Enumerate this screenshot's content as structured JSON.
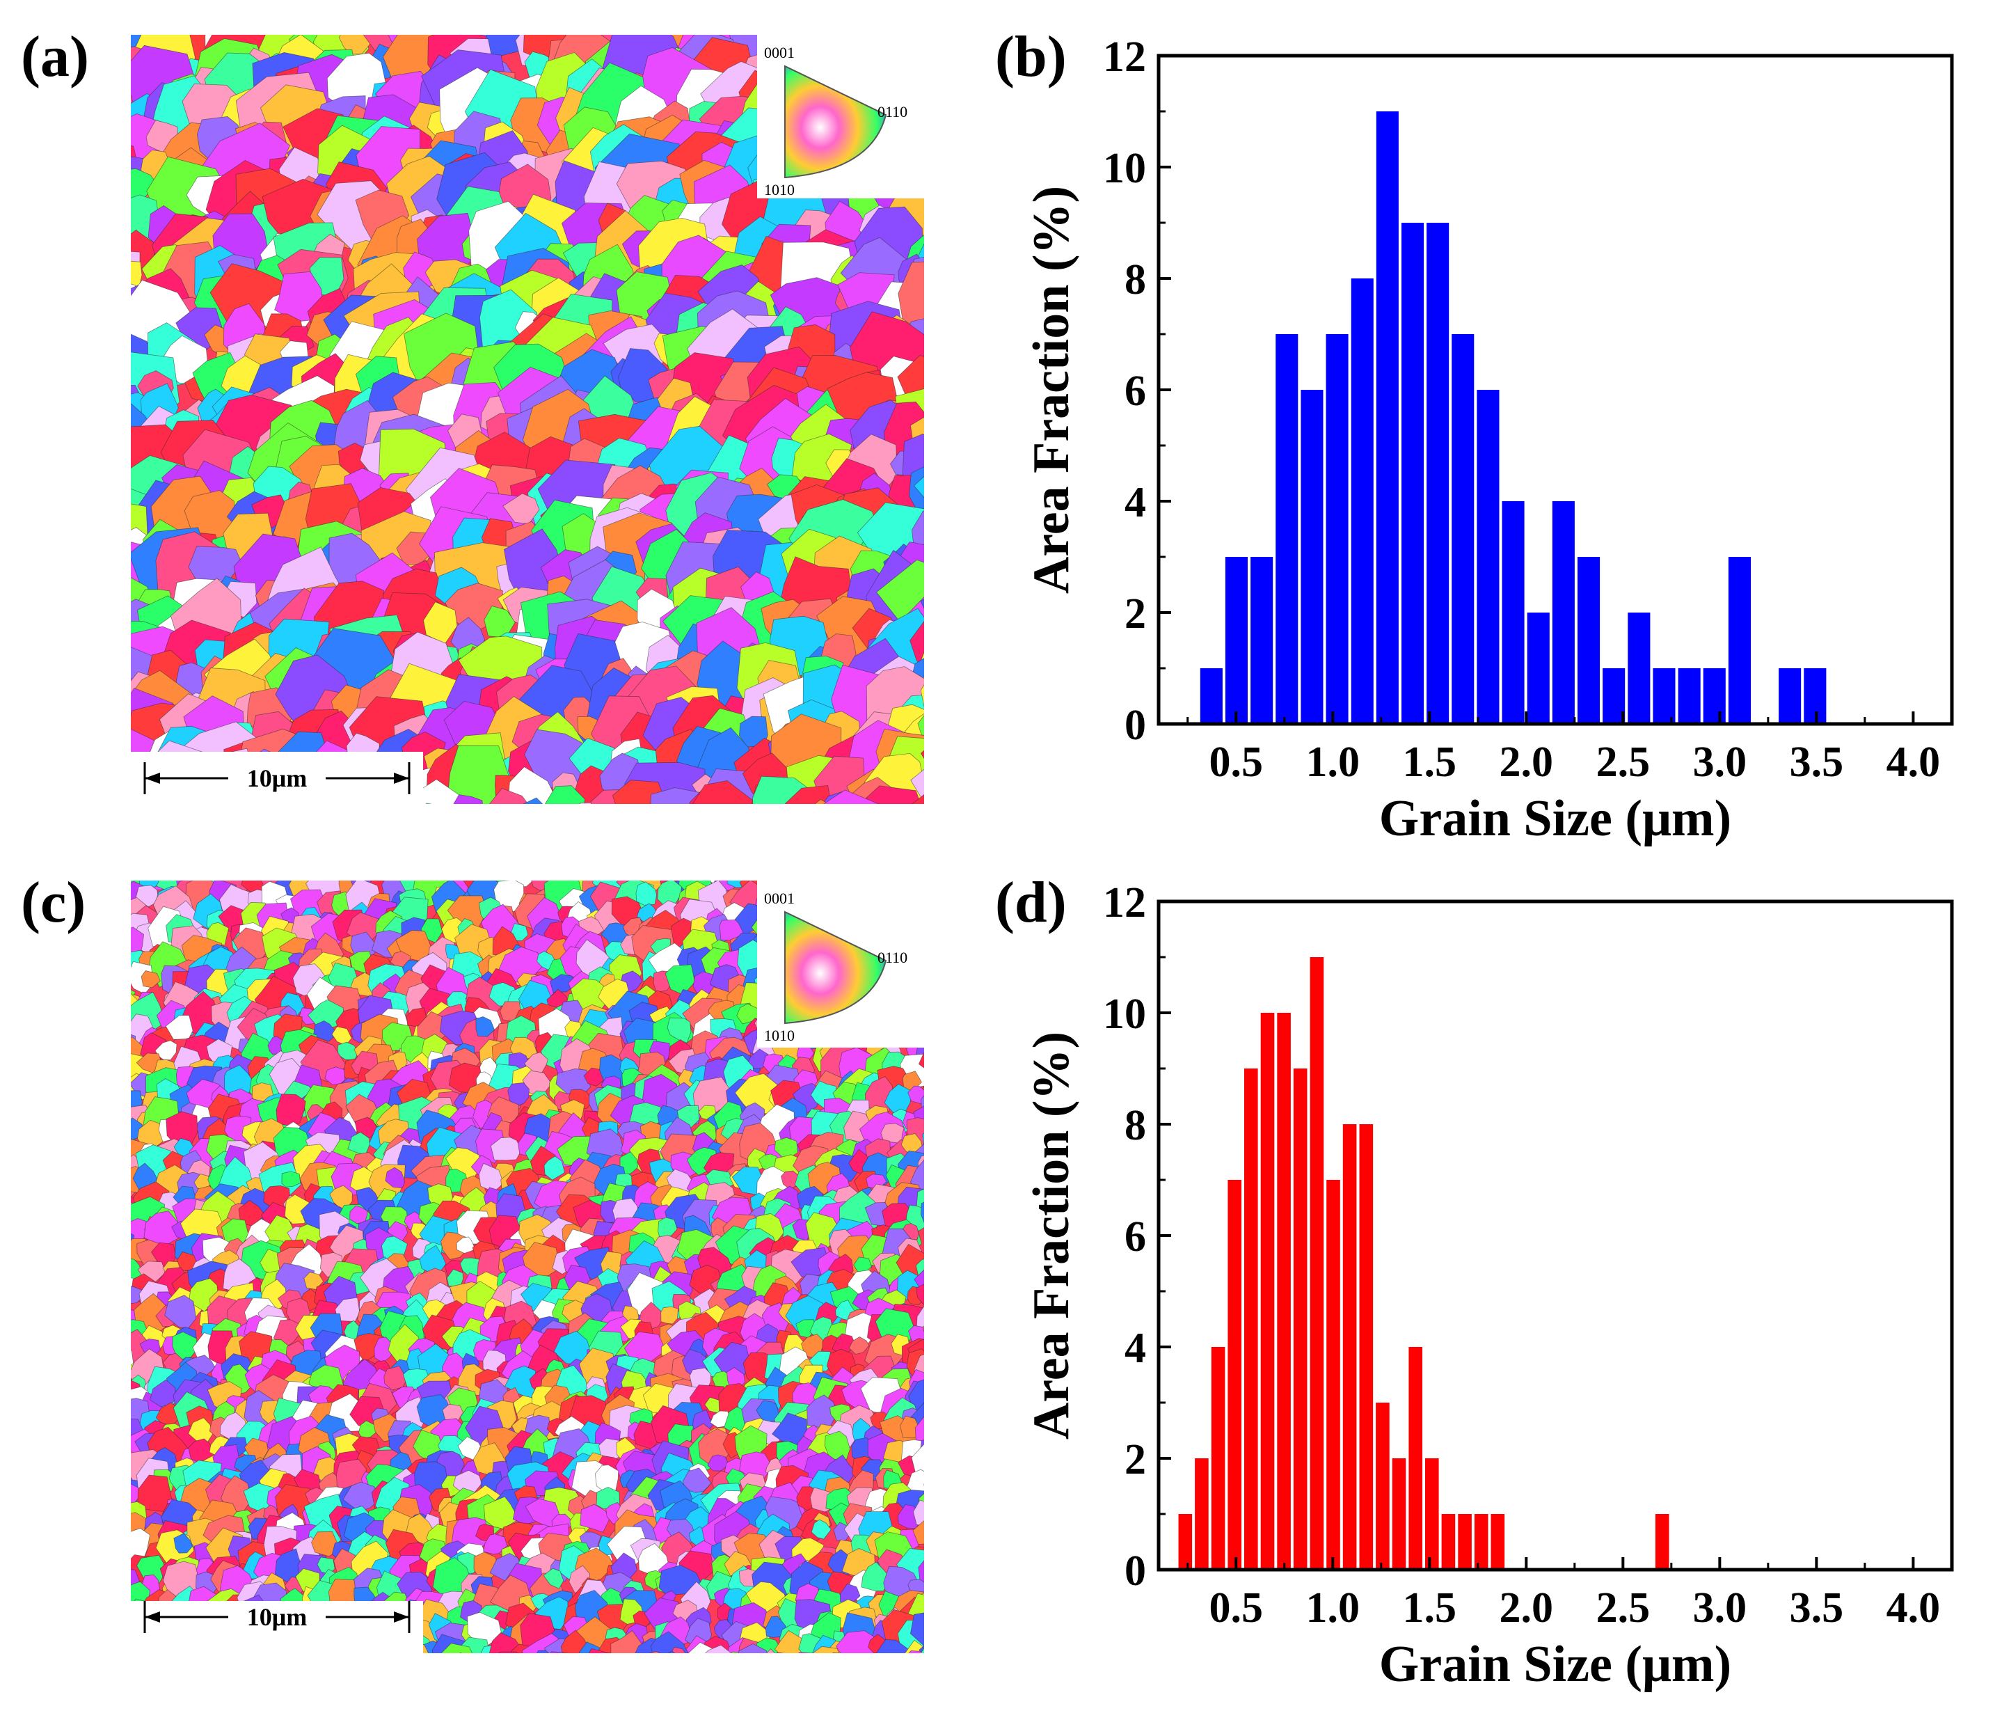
{
  "panels": {
    "a": "(a)",
    "b": "(b)",
    "c": "(c)",
    "d": "(d)"
  },
  "ebsd": [
    {
      "id": "a",
      "scale_bar_label": "10μm",
      "ipf_labels": {
        "top": "0001",
        "right": "0110",
        "bottom": "1010"
      },
      "seed": 11,
      "grain_scale": "coarse"
    },
    {
      "id": "c",
      "scale_bar_label": "10μm",
      "ipf_labels": {
        "top": "0001",
        "right": "0110",
        "bottom": "1010"
      },
      "seed": 29,
      "grain_scale": "fine"
    }
  ],
  "colors": {
    "blue_bars": "#0000ff",
    "red_bars": "#ff0000",
    "grain_palette": [
      "#ff2a4a",
      "#ff3b3b",
      "#ff4d8a",
      "#f04aff",
      "#c43bff",
      "#8b4bff",
      "#4b5cff",
      "#2f7fff",
      "#1fd1ff",
      "#35ffd9",
      "#2aff6a",
      "#6bff3b",
      "#b8ff2a",
      "#fff23a",
      "#ffc13b",
      "#ff8a3b",
      "#ff6a6a",
      "#ff9ac0",
      "#f2c0ff",
      "#ffffff",
      "#9a6bff",
      "#3bff9e",
      "#e84aff",
      "#ff1f6e"
    ]
  },
  "chart_data": [
    {
      "id": "b",
      "type": "bar",
      "title": "",
      "xlabel": "Grain Size (μm)",
      "ylabel": "Area Fraction (%)",
      "xlim": [
        0.1,
        4.2
      ],
      "ylim": [
        0,
        12
      ],
      "xticks": [
        "0.5",
        "1.0",
        "1.5",
        "2.0",
        "2.5",
        "3.0",
        "3.5",
        "4.0"
      ],
      "xtick_values": [
        0.5,
        1.0,
        1.5,
        2.0,
        2.5,
        3.0,
        3.5,
        4.0
      ],
      "yticks": [
        "0",
        "2",
        "4",
        "6",
        "8",
        "10",
        "12"
      ],
      "ytick_values": [
        0,
        2,
        4,
        6,
        8,
        10,
        12
      ],
      "bin_width": 0.13,
      "x": [
        0.38,
        0.51,
        0.64,
        0.77,
        0.9,
        1.03,
        1.16,
        1.29,
        1.42,
        1.55,
        1.68,
        1.81,
        1.94,
        2.07,
        2.2,
        2.33,
        2.46,
        2.59,
        2.72,
        2.85,
        2.98,
        3.11,
        3.24,
        3.37,
        3.5
      ],
      "values": [
        1,
        3,
        3,
        7,
        6,
        7,
        8,
        11,
        9,
        9,
        7,
        6,
        4,
        2,
        4,
        3,
        1,
        2,
        1,
        1,
        1,
        3,
        0,
        1,
        1
      ],
      "color": "#0000ff"
    },
    {
      "id": "d",
      "type": "bar",
      "title": "",
      "xlabel": "Grain Size (μm)",
      "ylabel": "Area Fraction (%)",
      "xlim": [
        0.1,
        4.2
      ],
      "ylim": [
        0,
        12
      ],
      "xticks": [
        "0.5",
        "1.0",
        "1.5",
        "2.0",
        "2.5",
        "3.0",
        "3.5",
        "4.0"
      ],
      "xtick_values": [
        0.5,
        1.0,
        1.5,
        2.0,
        2.5,
        3.0,
        3.5,
        4.0
      ],
      "yticks": [
        "0",
        "2",
        "4",
        "6",
        "8",
        "10",
        "12"
      ],
      "ytick_values": [
        0,
        2,
        4,
        6,
        8,
        10,
        12
      ],
      "bin_width": 0.085,
      "x": [
        0.245,
        0.33,
        0.415,
        0.5,
        0.585,
        0.67,
        0.755,
        0.84,
        0.925,
        1.01,
        1.095,
        1.18,
        1.265,
        1.35,
        1.435,
        1.52,
        1.605,
        1.69,
        1.775,
        1.86,
        1.945,
        2.03,
        2.115,
        2.2,
        2.285,
        2.37,
        2.455,
        2.54,
        2.625,
        2.71
      ],
      "values": [
        1,
        2,
        4,
        7,
        9,
        10,
        10,
        9,
        11,
        7,
        8,
        8,
        3,
        2,
        4,
        2,
        1,
        1,
        1,
        1,
        0,
        0,
        0,
        0,
        0,
        0,
        0,
        0,
        0,
        1
      ],
      "color": "#ff0000"
    }
  ]
}
